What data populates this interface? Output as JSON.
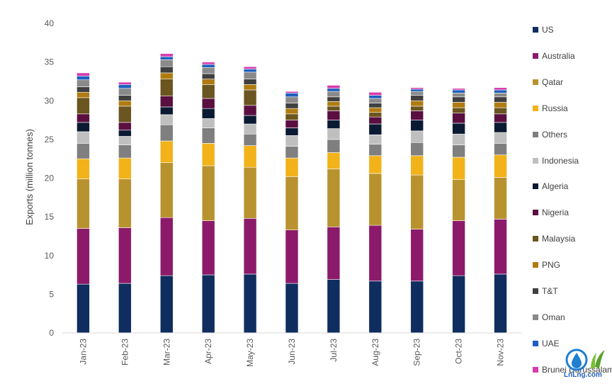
{
  "chart_data": {
    "type": "bar",
    "stacked": true,
    "ylabel": "Exports (million tonnes)",
    "xlabel": "",
    "ylim": [
      0,
      40
    ],
    "yticks": [
      0,
      5,
      10,
      15,
      20,
      25,
      30,
      35,
      40
    ],
    "grid": false,
    "legend_position": "right",
    "categories": [
      "Jan-23",
      "Feb-23",
      "Mar-23",
      "Apr-23",
      "May-23",
      "Jun-23",
      "Jul-23",
      "Aug-23",
      "Sep-23",
      "Oct-23",
      "Nov-23"
    ],
    "series": [
      {
        "name": "US",
        "color": "#0f2d5e",
        "values": [
          6.3,
          6.4,
          7.4,
          7.5,
          7.6,
          6.4,
          6.9,
          6.7,
          6.7,
          7.4,
          7.6
        ]
      },
      {
        "name": "Australia",
        "color": "#8c1a6a",
        "values": [
          7.2,
          7.2,
          7.5,
          7.0,
          7.2,
          6.9,
          6.8,
          7.2,
          6.7,
          7.1,
          7.1
        ]
      },
      {
        "name": "Qatar",
        "color": "#b8922e",
        "values": [
          6.4,
          6.3,
          7.1,
          7.1,
          6.6,
          6.9,
          7.5,
          6.7,
          7.0,
          5.3,
          5.4
        ]
      },
      {
        "name": "Russia",
        "color": "#f2b219",
        "values": [
          2.6,
          2.7,
          2.8,
          2.9,
          2.8,
          2.4,
          2.1,
          2.3,
          2.5,
          2.9,
          2.9
        ]
      },
      {
        "name": "Others",
        "color": "#7f7f7f",
        "values": [
          2.0,
          1.7,
          2.1,
          2.0,
          1.5,
          1.5,
          1.7,
          1.5,
          1.7,
          1.6,
          1.5
        ]
      },
      {
        "name": "Indonesia",
        "color": "#bfbfbf",
        "values": [
          1.5,
          1.1,
          1.3,
          1.2,
          1.3,
          1.4,
          1.4,
          1.2,
          1.5,
          1.4,
          1.4
        ]
      },
      {
        "name": "Algeria",
        "color": "#0b1a33",
        "values": [
          1.2,
          0.8,
          1.0,
          1.3,
          1.1,
          1.0,
          1.1,
          1.4,
          1.4,
          1.4,
          1.3
        ]
      },
      {
        "name": "Nigeria",
        "color": "#5a0f40",
        "values": [
          1.1,
          1.0,
          1.4,
          1.3,
          1.3,
          1.0,
          1.2,
          0.9,
          1.2,
          1.3,
          1.1
        ]
      },
      {
        "name": "Malaysia",
        "color": "#6b5520",
        "values": [
          2.1,
          2.1,
          2.2,
          1.8,
          2.0,
          0.8,
          0.6,
          0.6,
          0.6,
          0.7,
          0.8
        ]
      },
      {
        "name": "PNG",
        "color": "#b07b10",
        "values": [
          0.7,
          0.7,
          0.8,
          0.7,
          0.7,
          0.7,
          0.6,
          0.6,
          0.7,
          0.7,
          0.7
        ]
      },
      {
        "name": "T&T",
        "color": "#404040",
        "values": [
          0.7,
          0.7,
          0.8,
          0.7,
          0.7,
          0.7,
          0.6,
          0.6,
          0.7,
          0.7,
          0.7
        ]
      },
      {
        "name": "Oman",
        "color": "#8a8a8a",
        "values": [
          0.9,
          0.9,
          0.9,
          0.8,
          0.9,
          0.8,
          0.7,
          0.6,
          0.5,
          0.5,
          0.5
        ]
      },
      {
        "name": "UAE",
        "color": "#1f5fbf",
        "values": [
          0.5,
          0.5,
          0.4,
          0.4,
          0.4,
          0.5,
          0.4,
          0.4,
          0.3,
          0.4,
          0.4
        ]
      },
      {
        "name": "Brunei Darussalam",
        "color": "#d63cae",
        "values": [
          0.4,
          0.3,
          0.4,
          0.3,
          0.3,
          0.2,
          0.4,
          0.4,
          0.2,
          0.2,
          0.3
        ]
      }
    ]
  },
  "logo": {
    "text": "LnLng.com"
  }
}
